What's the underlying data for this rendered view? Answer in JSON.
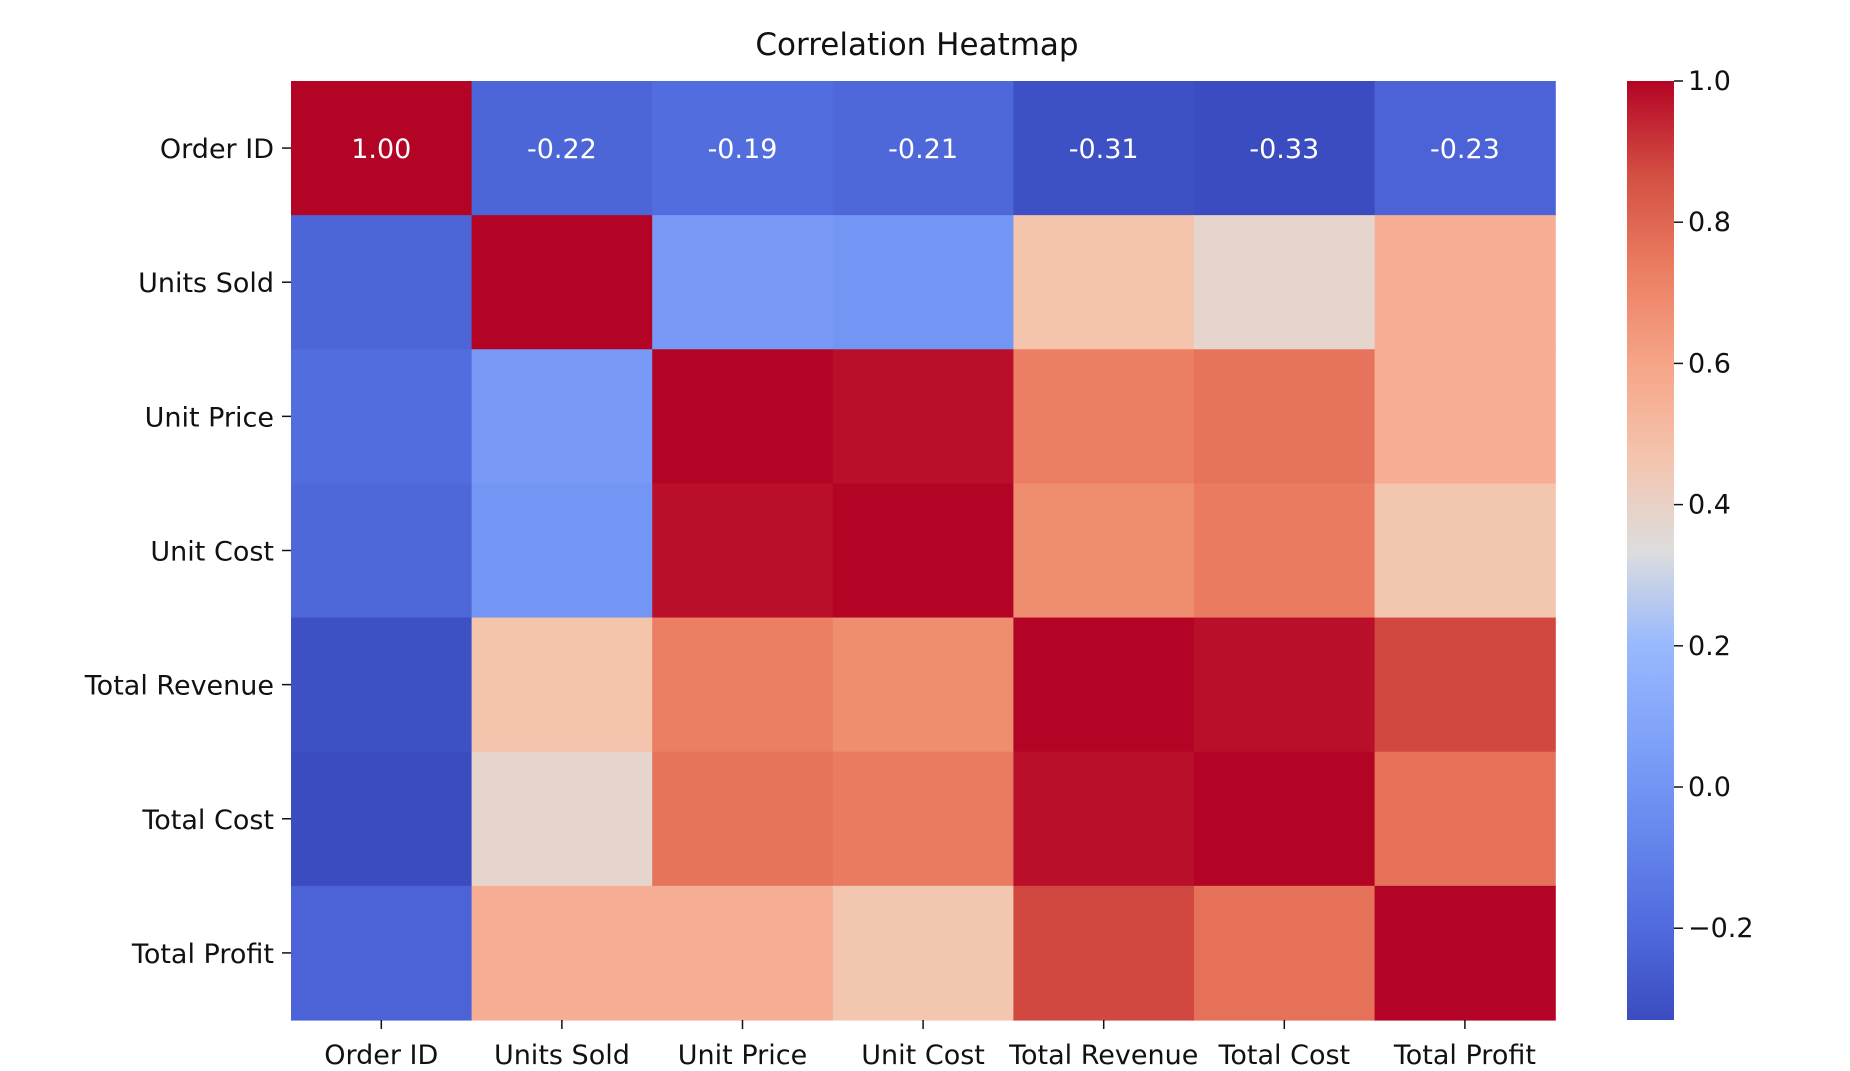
{
  "chart_data": {
    "type": "heatmap",
    "title": "Correlation Heatmap",
    "x_labels": [
      "Order ID",
      "Units Sold",
      "Unit Price",
      "Unit Cost",
      "Total Revenue",
      "Total Cost",
      "Total Profit"
    ],
    "y_labels": [
      "Order ID",
      "Units Sold",
      "Unit Price",
      "Unit Cost",
      "Total Revenue",
      "Total Cost",
      "Total Profit"
    ],
    "matrix": [
      [
        1.0,
        -0.22,
        -0.19,
        -0.21,
        -0.31,
        -0.33,
        -0.23
      ],
      [
        -0.22,
        1.0,
        0.03,
        0.0,
        0.47,
        0.38,
        0.56
      ],
      [
        -0.19,
        0.03,
        1.0,
        0.98,
        0.73,
        0.76,
        0.56
      ],
      [
        -0.21,
        0.0,
        0.98,
        1.0,
        0.68,
        0.74,
        0.46
      ],
      [
        -0.31,
        0.47,
        0.73,
        0.68,
        1.0,
        0.98,
        0.88
      ],
      [
        -0.33,
        0.38,
        0.76,
        0.74,
        0.98,
        1.0,
        0.77
      ],
      [
        -0.23,
        0.56,
        0.56,
        0.46,
        0.88,
        0.77,
        1.0
      ]
    ],
    "annotated_row": 0,
    "annotations": [
      "1.00",
      "-0.22",
      "-0.19",
      "-0.21",
      "-0.31",
      "-0.33",
      "-0.23"
    ],
    "colormap": "coolwarm",
    "vmin": -0.33,
    "vmax": 1.0,
    "colorbar_ticks": [
      {
        "value": 1.0,
        "label": "1.0"
      },
      {
        "value": 0.8,
        "label": "0.8"
      },
      {
        "value": 0.6,
        "label": "0.6"
      },
      {
        "value": 0.4,
        "label": "0.4"
      },
      {
        "value": 0.2,
        "label": "0.2"
      },
      {
        "value": 0.0,
        "label": "0.0"
      },
      {
        "value": -0.2,
        "label": "−0.2"
      }
    ],
    "colorbar_position": "right"
  }
}
